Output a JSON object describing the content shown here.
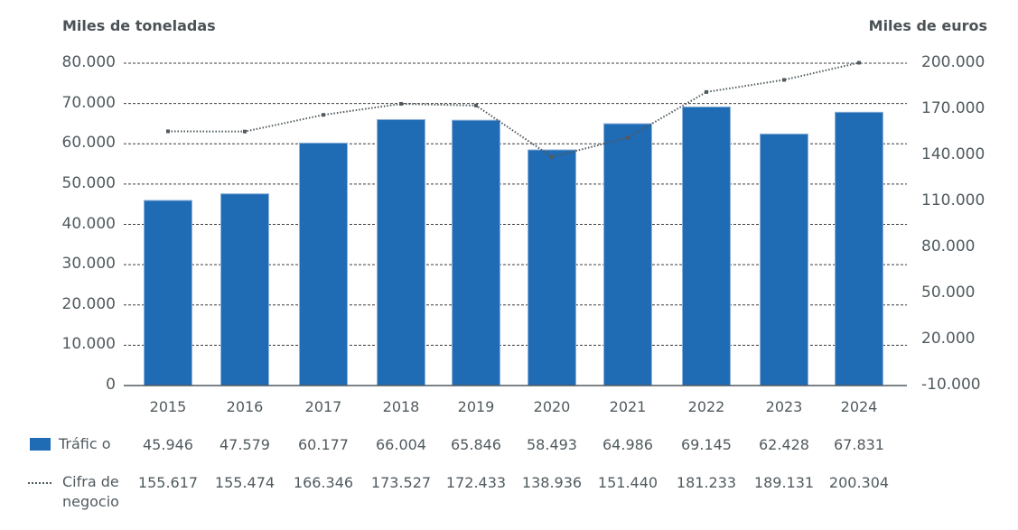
{
  "chart": {
    "left_axis_title": "Miles de toneladas",
    "right_axis_title": "Miles de euros",
    "left_ticks": [
      "80.000",
      "70.000",
      "60.000",
      "50.000",
      "40.000",
      "30.000",
      "20.000",
      "10.000",
      "0"
    ],
    "right_ticks": [
      "200.000",
      "170.000",
      "140.000",
      "110.000",
      "80.000",
      "50.000",
      "20.000",
      "-10.000"
    ],
    "years": [
      "2015",
      "2016",
      "2017",
      "2018",
      "2019",
      "2020",
      "2021",
      "2022",
      "2023",
      "2024"
    ]
  },
  "table": {
    "rows": [
      {
        "legend_label": "Tráfic  o",
        "values": [
          "45.946",
          "47.579",
          "60.177",
          "66.004",
          "65.846",
          "58.493",
          "64.986",
          "69.145",
          "62.428",
          "67.831"
        ]
      },
      {
        "legend_label_line1": "Cifra de",
        "legend_label_line2": "negocio",
        "values": [
          "155.617",
          "155.474",
          "166.346",
          "173.527",
          "172.433",
          "138.936",
          "151.440",
          "181.233",
          "189.131",
          "200.304"
        ]
      }
    ]
  },
  "colors": {
    "bar": "#1f6bb4",
    "line": "#505a5f",
    "grid": "#3c3c3c",
    "text": "#505a5f"
  },
  "chart_data": {
    "type": "bar",
    "title": "",
    "categories": [
      "2015",
      "2016",
      "2017",
      "2018",
      "2019",
      "2020",
      "2021",
      "2022",
      "2023",
      "2024"
    ],
    "series": [
      {
        "name": "Tráfico",
        "type": "bar",
        "axis": "left",
        "unit": "Miles de toneladas",
        "values": [
          45946,
          47579,
          60177,
          66004,
          65846,
          58493,
          64986,
          69145,
          62428,
          67831
        ]
      },
      {
        "name": "Cifra de negocio",
        "type": "line",
        "style": "dotted",
        "axis": "right",
        "unit": "Miles de euros",
        "values": [
          155617,
          155474,
          166346,
          173527,
          172433,
          138936,
          151440,
          181233,
          189131,
          200304
        ]
      }
    ],
    "xlabel": "",
    "ylabel": "Miles de toneladas",
    "ylabel_right": "Miles de euros",
    "ylim": [
      0,
      80000
    ],
    "ylim_right": [
      -10000,
      200000
    ],
    "yticks": [
      0,
      10000,
      20000,
      30000,
      40000,
      50000,
      60000,
      70000,
      80000
    ],
    "yticks_right": [
      -10000,
      20000,
      50000,
      80000,
      110000,
      140000,
      170000,
      200000
    ],
    "grid": true,
    "legend_position": "bottom (data table)"
  }
}
